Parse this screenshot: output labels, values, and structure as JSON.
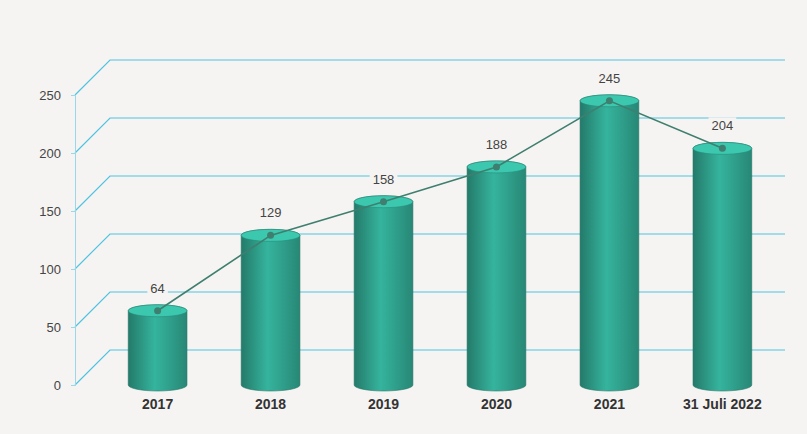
{
  "chart_data": {
    "type": "bar",
    "categories": [
      "2017",
      "2018",
      "2019",
      "2020",
      "2021",
      "31 Juli 2022"
    ],
    "series": [
      {
        "type": "bar",
        "color": "#2e9c88",
        "values": [
          64,
          129,
          158,
          188,
          245,
          204
        ]
      },
      {
        "type": "line",
        "color": "#3f7f70",
        "marker": "circle",
        "values": [
          64,
          129,
          158,
          188,
          245,
          204
        ]
      }
    ],
    "ylim": [
      0,
      250
    ],
    "yticks": [
      0,
      50,
      100,
      150,
      200,
      250
    ],
    "grid": true,
    "data_labels": true
  }
}
